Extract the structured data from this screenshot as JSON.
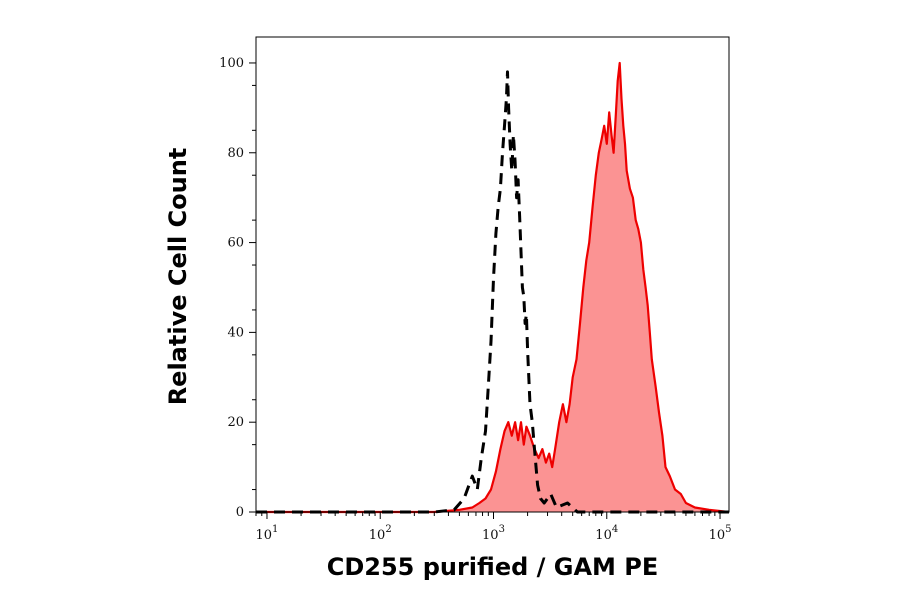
{
  "chart_data": {
    "type": "area",
    "xlabel": "CD255 purified / GAM PE",
    "ylabel": "Relative Cell Count",
    "x_scale": "log",
    "xlim": [
      8,
      120000
    ],
    "ylim": [
      0,
      104
    ],
    "x_ticks": [
      {
        "value": 10,
        "base": "10",
        "exp": "1"
      },
      {
        "value": 100,
        "base": "10",
        "exp": "2"
      },
      {
        "value": 1000,
        "base": "10",
        "exp": "3"
      },
      {
        "value": 10000,
        "base": "10",
        "exp": "4"
      },
      {
        "value": 100000,
        "base": "10",
        "exp": "5"
      }
    ],
    "y_ticks": [
      0,
      20,
      40,
      60,
      80,
      100
    ],
    "grid": false,
    "legend": "none",
    "series": [
      {
        "style": "dashed",
        "color": "#000000",
        "fill": "none",
        "points": [
          [
            8,
            0
          ],
          [
            300,
            0
          ],
          [
            450,
            0.5
          ],
          [
            550,
            3
          ],
          [
            650,
            8
          ],
          [
            720,
            5
          ],
          [
            780,
            12
          ],
          [
            850,
            18
          ],
          [
            900,
            28
          ],
          [
            950,
            38
          ],
          [
            1000,
            52
          ],
          [
            1050,
            62
          ],
          [
            1100,
            68
          ],
          [
            1150,
            72
          ],
          [
            1200,
            80
          ],
          [
            1250,
            86
          ],
          [
            1300,
            92
          ],
          [
            1330,
            98
          ],
          [
            1360,
            90
          ],
          [
            1400,
            82
          ],
          [
            1450,
            76
          ],
          [
            1500,
            84
          ],
          [
            1550,
            78
          ],
          [
            1600,
            70
          ],
          [
            1650,
            74
          ],
          [
            1700,
            66
          ],
          [
            1750,
            58
          ],
          [
            1800,
            50
          ],
          [
            1850,
            48
          ],
          [
            1900,
            42
          ],
          [
            1950,
            44
          ],
          [
            2000,
            36
          ],
          [
            2100,
            24
          ],
          [
            2200,
            20
          ],
          [
            2300,
            14
          ],
          [
            2450,
            6
          ],
          [
            2600,
            3
          ],
          [
            2800,
            2
          ],
          [
            3200,
            4
          ],
          [
            3600,
            1
          ],
          [
            4500,
            2
          ],
          [
            5500,
            0
          ],
          [
            8000,
            0
          ],
          [
            120000,
            0
          ]
        ]
      },
      {
        "style": "solid",
        "color": "#ee0000",
        "fill": "#fb9393",
        "points": [
          [
            8,
            0
          ],
          [
            300,
            0
          ],
          [
            500,
            0.5
          ],
          [
            650,
            1
          ],
          [
            750,
            2
          ],
          [
            850,
            3
          ],
          [
            950,
            5
          ],
          [
            1050,
            9
          ],
          [
            1150,
            14
          ],
          [
            1250,
            18
          ],
          [
            1350,
            20
          ],
          [
            1450,
            17
          ],
          [
            1550,
            20
          ],
          [
            1650,
            16
          ],
          [
            1750,
            20
          ],
          [
            1850,
            15
          ],
          [
            1950,
            19
          ],
          [
            2100,
            17
          ],
          [
            2300,
            14
          ],
          [
            2500,
            12
          ],
          [
            2700,
            14
          ],
          [
            2900,
            11
          ],
          [
            3100,
            13
          ],
          [
            3300,
            10
          ],
          [
            3500,
            14
          ],
          [
            3800,
            20
          ],
          [
            4100,
            24
          ],
          [
            4400,
            20
          ],
          [
            4700,
            24
          ],
          [
            5000,
            30
          ],
          [
            5400,
            34
          ],
          [
            5800,
            42
          ],
          [
            6200,
            50
          ],
          [
            6600,
            56
          ],
          [
            7000,
            60
          ],
          [
            7500,
            68
          ],
          [
            8000,
            75
          ],
          [
            8500,
            80
          ],
          [
            9000,
            83
          ],
          [
            9500,
            86
          ],
          [
            10000,
            82
          ],
          [
            10500,
            89
          ],
          [
            11000,
            84
          ],
          [
            11500,
            80
          ],
          [
            12000,
            88
          ],
          [
            12500,
            96
          ],
          [
            13000,
            100
          ],
          [
            13500,
            92
          ],
          [
            14000,
            86
          ],
          [
            14500,
            82
          ],
          [
            15000,
            76
          ],
          [
            16000,
            72
          ],
          [
            17000,
            70
          ],
          [
            18000,
            65
          ],
          [
            19000,
            63
          ],
          [
            20000,
            60
          ],
          [
            21000,
            54
          ],
          [
            22000,
            50
          ],
          [
            23000,
            46
          ],
          [
            24000,
            40
          ],
          [
            25000,
            34
          ],
          [
            27000,
            28
          ],
          [
            29000,
            22
          ],
          [
            31000,
            17
          ],
          [
            33000,
            10
          ],
          [
            36000,
            8
          ],
          [
            40000,
            5
          ],
          [
            45000,
            4
          ],
          [
            50000,
            2
          ],
          [
            60000,
            1
          ],
          [
            80000,
            0.5
          ],
          [
            120000,
            0
          ]
        ]
      }
    ]
  }
}
